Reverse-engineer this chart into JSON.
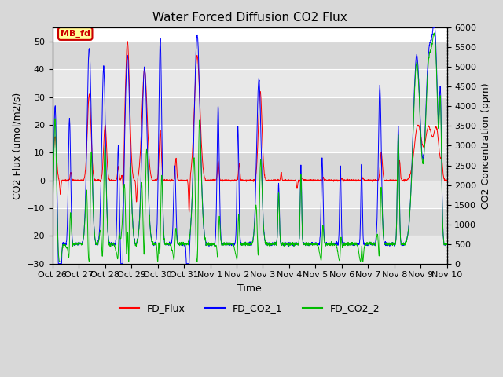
{
  "title": "Water Forced Diffusion CO2 Flux",
  "xlabel": "Time",
  "ylabel_left": "CO2 Flux (umol/m2/s)",
  "ylabel_right": "CO2 Concentration (ppm)",
  "ylim_left": [
    -30,
    55
  ],
  "ylim_right": [
    0,
    6000
  ],
  "yticks_left": [
    -30,
    -20,
    -10,
    0,
    10,
    20,
    30,
    40,
    50
  ],
  "yticks_right": [
    0,
    500,
    1000,
    1500,
    2000,
    2500,
    3000,
    3500,
    4000,
    4500,
    5000,
    5500,
    6000
  ],
  "bg_color": "#d8d8d8",
  "plot_bg_bands": [
    "#e8e8e8",
    "#d0d0d0"
  ],
  "grid_color": "#ffffff",
  "annotation_text": "MB_fd",
  "annotation_color": "#cc0000",
  "annotation_bg": "#ffff99",
  "flux_color": "#ff0000",
  "co2_1_color": "#0000ff",
  "co2_2_color": "#00bb00",
  "legend_labels": [
    "FD_Flux",
    "FD_CO2_1",
    "FD_CO2_2"
  ],
  "tick_labels": [
    "Oct 26",
    "Oct 27",
    "Oct 28",
    "Oct 29",
    "Oct 30",
    "Oct 31",
    "Nov 1",
    "Nov 2",
    "Nov 3",
    "Nov 4",
    "Nov 5",
    "Nov 6",
    "Nov 7",
    "Nov 8",
    "Nov 9",
    "Nov 10"
  ],
  "num_days": 15,
  "seed": 42
}
